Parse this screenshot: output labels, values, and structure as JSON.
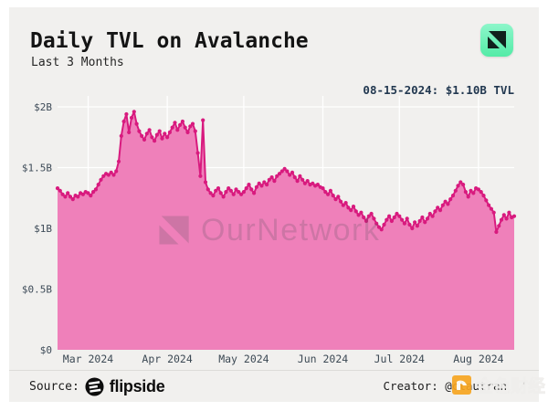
{
  "header": {
    "title": "Daily TVL on Avalanche",
    "subtitle": "Last 3 Months"
  },
  "annotation": {
    "latest_label": "08-15-2024: $1.10B TVL"
  },
  "watermark": {
    "brand": "OurNetwork"
  },
  "footer": {
    "source_label": "Source:",
    "source_name": "flipside",
    "creator_label": "Creator: @clautran",
    "jinse_watermark": "金色财经"
  },
  "chart_data": {
    "type": "area",
    "title": "Daily TVL on Avalanche",
    "series_name": "Daily TVL",
    "unit": "USD billions",
    "frequency": "daily",
    "x_start_date": "2024-02-18",
    "x_end_date": "2024-08-15",
    "ylim": [
      0,
      2.09
    ],
    "grid": true,
    "y_ticks": [
      {
        "label": "$0",
        "value": 0
      },
      {
        "label": "$0.5B",
        "value": 0.5
      },
      {
        "label": "$1B",
        "value": 1
      },
      {
        "label": "$1.5B",
        "value": 1.5
      },
      {
        "label": "$2B",
        "value": 2
      }
    ],
    "month_ticks": [
      {
        "label": "Mar 2024",
        "day_index": 12
      },
      {
        "label": "Apr 2024",
        "day_index": 43
      },
      {
        "label": "May 2024",
        "day_index": 73
      },
      {
        "label": "Jun 2024",
        "day_index": 104
      },
      {
        "label": "Jul 2024",
        "day_index": 134
      },
      {
        "label": "Aug 2024",
        "day_index": 165
      }
    ],
    "values": [
      1.33,
      1.31,
      1.28,
      1.26,
      1.29,
      1.26,
      1.24,
      1.27,
      1.26,
      1.29,
      1.28,
      1.3,
      1.29,
      1.27,
      1.3,
      1.32,
      1.36,
      1.4,
      1.43,
      1.45,
      1.44,
      1.46,
      1.44,
      1.47,
      1.55,
      1.76,
      1.88,
      1.94,
      1.79,
      1.91,
      1.96,
      1.86,
      1.8,
      1.76,
      1.73,
      1.78,
      1.81,
      1.75,
      1.72,
      1.77,
      1.8,
      1.74,
      1.78,
      1.75,
      1.79,
      1.83,
      1.87,
      1.81,
      1.85,
      1.88,
      1.83,
      1.79,
      1.84,
      1.86,
      1.8,
      1.62,
      1.43,
      1.89,
      1.38,
      1.32,
      1.29,
      1.27,
      1.31,
      1.33,
      1.29,
      1.26,
      1.3,
      1.33,
      1.31,
      1.28,
      1.32,
      1.3,
      1.28,
      1.3,
      1.33,
      1.36,
      1.32,
      1.29,
      1.34,
      1.37,
      1.35,
      1.38,
      1.36,
      1.4,
      1.42,
      1.39,
      1.43,
      1.45,
      1.47,
      1.49,
      1.47,
      1.44,
      1.46,
      1.42,
      1.39,
      1.43,
      1.4,
      1.37,
      1.39,
      1.36,
      1.37,
      1.35,
      1.36,
      1.34,
      1.33,
      1.3,
      1.28,
      1.31,
      1.27,
      1.24,
      1.26,
      1.22,
      1.19,
      1.21,
      1.17,
      1.15,
      1.18,
      1.14,
      1.11,
      1.13,
      1.09,
      1.06,
      1.1,
      1.12,
      1.08,
      1.04,
      1.01,
      0.99,
      1.03,
      1.07,
      1.1,
      1.06,
      1.09,
      1.12,
      1.1,
      1.07,
      1.04,
      1.08,
      1.03,
      1.0,
      1.05,
      1.02,
      1.06,
      1.09,
      1.05,
      1.08,
      1.12,
      1.1,
      1.14,
      1.17,
      1.15,
      1.19,
      1.22,
      1.2,
      1.24,
      1.27,
      1.31,
      1.35,
      1.38,
      1.36,
      1.3,
      1.26,
      1.31,
      1.29,
      1.33,
      1.32,
      1.3,
      1.27,
      1.23,
      1.19,
      1.16,
      1.13,
      0.97,
      1.02,
      1.07,
      1.11,
      1.08,
      1.13,
      1.09,
      1.1
    ],
    "last_point": {
      "date": "2024-08-15",
      "value_billion": 1.1,
      "label": "08-15-2024: $1.10B TVL"
    },
    "colors": {
      "line": "#d81a7e",
      "fill": "#ef80ba",
      "grid": "#ffffff",
      "card_background": "#f1f0ee",
      "annotation_text": "#223850",
      "logo_green_top": "#8df6ca",
      "logo_green_bottom": "#54eba7",
      "jinse_orange": "#f7a622"
    }
  }
}
